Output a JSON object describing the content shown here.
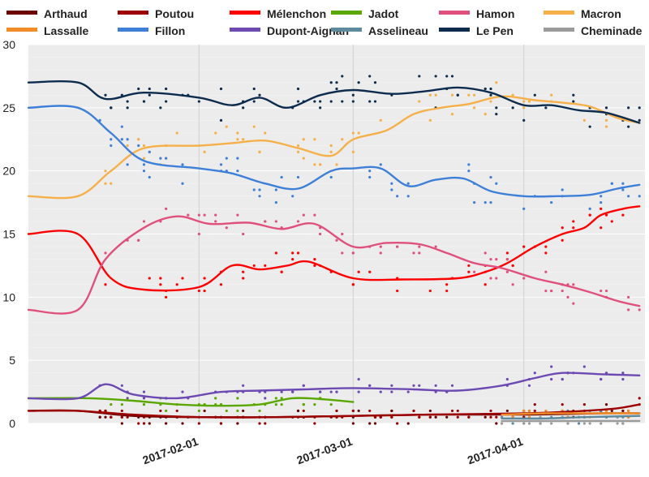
{
  "chart_data": {
    "type": "line",
    "title": "",
    "xlabel": "",
    "ylabel": "",
    "x_ticks": [
      "2017-02-01",
      "2017-03-01",
      "2017-04-01"
    ],
    "x_range": [
      "2017-01-01",
      "2017-04-23"
    ],
    "ylim": [
      0,
      30
    ],
    "y_ticks": [
      0,
      5,
      10,
      15,
      20,
      25,
      30
    ],
    "grid": true,
    "legend_position": "top",
    "series": [
      {
        "name": "Arthaud",
        "color": "#6b0000",
        "points": [
          [
            "2017-01-01",
            1.0
          ],
          [
            "2017-01-10",
            1.0
          ],
          [
            "2017-01-20",
            0.6
          ],
          [
            "2017-02-01",
            0.5
          ],
          [
            "2017-02-15",
            0.5
          ],
          [
            "2017-03-01",
            0.6
          ],
          [
            "2017-03-15",
            0.7
          ],
          [
            "2017-04-01",
            0.7
          ],
          [
            "2017-04-15",
            0.8
          ],
          [
            "2017-04-22",
            0.8
          ]
        ]
      },
      {
        "name": "Poutou",
        "color": "#9c0000",
        "points": [
          [
            "2017-01-01",
            1.0
          ],
          [
            "2017-01-10",
            1.0
          ],
          [
            "2017-01-20",
            0.7
          ],
          [
            "2017-02-01",
            0.5
          ],
          [
            "2017-02-15",
            0.5
          ],
          [
            "2017-03-01",
            0.6
          ],
          [
            "2017-03-15",
            0.7
          ],
          [
            "2017-04-01",
            0.8
          ],
          [
            "2017-04-12",
            1.0
          ],
          [
            "2017-04-18",
            1.2
          ],
          [
            "2017-04-22",
            1.5
          ]
        ]
      },
      {
        "name": "Mélenchon",
        "color": "#ff0000",
        "points": [
          [
            "2017-01-01",
            15.0
          ],
          [
            "2017-01-10",
            15.0
          ],
          [
            "2017-01-16",
            11.5
          ],
          [
            "2017-01-22",
            10.6
          ],
          [
            "2017-02-01",
            10.8
          ],
          [
            "2017-02-07",
            12.5
          ],
          [
            "2017-02-12",
            12.2
          ],
          [
            "2017-02-17",
            12.5
          ],
          [
            "2017-02-21",
            12.8
          ],
          [
            "2017-03-01",
            11.5
          ],
          [
            "2017-03-10",
            11.4
          ],
          [
            "2017-03-20",
            11.5
          ],
          [
            "2017-03-25",
            12.0
          ],
          [
            "2017-03-29",
            12.7
          ],
          [
            "2017-04-03",
            14.0
          ],
          [
            "2017-04-08",
            15.0
          ],
          [
            "2017-04-12",
            15.5
          ],
          [
            "2017-04-15",
            16.5
          ],
          [
            "2017-04-19",
            17.0
          ],
          [
            "2017-04-22",
            17.2
          ]
        ]
      },
      {
        "name": "Jadot",
        "color": "#5aa700",
        "points": [
          [
            "2017-01-01",
            2.0
          ],
          [
            "2017-01-12",
            2.0
          ],
          [
            "2017-01-20",
            1.8
          ],
          [
            "2017-01-28",
            1.5
          ],
          [
            "2017-02-05",
            1.4
          ],
          [
            "2017-02-12",
            1.5
          ],
          [
            "2017-02-18",
            2.0
          ],
          [
            "2017-02-24",
            1.9
          ],
          [
            "2017-03-01",
            1.7
          ]
        ]
      },
      {
        "name": "Hamon",
        "color": "#e0507d",
        "points": [
          [
            "2017-01-01",
            9.0
          ],
          [
            "2017-01-10",
            9.0
          ],
          [
            "2017-01-15",
            13.0
          ],
          [
            "2017-01-22",
            15.5
          ],
          [
            "2017-01-28",
            16.4
          ],
          [
            "2017-02-03",
            15.8
          ],
          [
            "2017-02-10",
            15.9
          ],
          [
            "2017-02-16",
            15.4
          ],
          [
            "2017-02-22",
            15.8
          ],
          [
            "2017-03-01",
            14.0
          ],
          [
            "2017-03-07",
            14.3
          ],
          [
            "2017-03-13",
            14.2
          ],
          [
            "2017-03-18",
            13.5
          ],
          [
            "2017-03-23",
            12.7
          ],
          [
            "2017-03-28",
            12.3
          ],
          [
            "2017-04-03",
            11.5
          ],
          [
            "2017-04-08",
            11.0
          ],
          [
            "2017-04-13",
            10.4
          ],
          [
            "2017-04-18",
            9.7
          ],
          [
            "2017-04-22",
            9.3
          ]
        ]
      },
      {
        "name": "Macron",
        "color": "#f5b04a",
        "points": [
          [
            "2017-01-01",
            18.0
          ],
          [
            "2017-01-10",
            18.0
          ],
          [
            "2017-01-16",
            20.0
          ],
          [
            "2017-01-22",
            21.8
          ],
          [
            "2017-02-01",
            22.0
          ],
          [
            "2017-02-07",
            22.2
          ],
          [
            "2017-02-13",
            22.4
          ],
          [
            "2017-02-19",
            21.8
          ],
          [
            "2017-02-25",
            21.2
          ],
          [
            "2017-03-01",
            22.5
          ],
          [
            "2017-03-07",
            23.2
          ],
          [
            "2017-03-12",
            24.5
          ],
          [
            "2017-03-17",
            25.0
          ],
          [
            "2017-03-22",
            25.3
          ],
          [
            "2017-03-28",
            25.9
          ],
          [
            "2017-04-03",
            25.6
          ],
          [
            "2017-04-08",
            25.4
          ],
          [
            "2017-04-13",
            25.1
          ],
          [
            "2017-04-18",
            24.2
          ],
          [
            "2017-04-22",
            23.8
          ]
        ]
      },
      {
        "name": "Lassalle",
        "color": "#f28c28",
        "points": [
          [
            "2017-03-28",
            0.7
          ],
          [
            "2017-04-05",
            0.8
          ],
          [
            "2017-04-12",
            0.8
          ],
          [
            "2017-04-22",
            0.8
          ]
        ]
      },
      {
        "name": "Fillon",
        "color": "#3e7fd8",
        "points": [
          [
            "2017-01-01",
            25.0
          ],
          [
            "2017-01-10",
            25.0
          ],
          [
            "2017-01-16",
            23.0
          ],
          [
            "2017-01-22",
            20.8
          ],
          [
            "2017-02-01",
            20.2
          ],
          [
            "2017-02-07",
            19.8
          ],
          [
            "2017-02-13",
            19.0
          ],
          [
            "2017-02-19",
            18.6
          ],
          [
            "2017-02-25",
            20.0
          ],
          [
            "2017-03-01",
            20.2
          ],
          [
            "2017-03-06",
            20.2
          ],
          [
            "2017-03-11",
            18.8
          ],
          [
            "2017-03-16",
            19.3
          ],
          [
            "2017-03-21",
            19.4
          ],
          [
            "2017-03-26",
            18.4
          ],
          [
            "2017-04-01",
            18.0
          ],
          [
            "2017-04-07",
            18.0
          ],
          [
            "2017-04-13",
            18.1
          ],
          [
            "2017-04-18",
            18.6
          ],
          [
            "2017-04-22",
            18.9
          ]
        ]
      },
      {
        "name": "Dupont-Aignan",
        "color": "#6c4ab2",
        "points": [
          [
            "2017-01-01",
            2.0
          ],
          [
            "2017-01-10",
            2.0
          ],
          [
            "2017-01-15",
            3.1
          ],
          [
            "2017-01-20",
            2.3
          ],
          [
            "2017-01-28",
            2.0
          ],
          [
            "2017-02-05",
            2.5
          ],
          [
            "2017-02-12",
            2.6
          ],
          [
            "2017-02-20",
            2.7
          ],
          [
            "2017-03-01",
            2.8
          ],
          [
            "2017-03-12",
            2.7
          ],
          [
            "2017-03-20",
            2.6
          ],
          [
            "2017-03-28",
            3.0
          ],
          [
            "2017-04-03",
            3.6
          ],
          [
            "2017-04-08",
            4.0
          ],
          [
            "2017-04-15",
            3.9
          ],
          [
            "2017-04-22",
            3.8
          ]
        ]
      },
      {
        "name": "Asselineau",
        "color": "#5e8a9e",
        "points": [
          [
            "2017-03-28",
            0.4
          ],
          [
            "2017-04-05",
            0.4
          ],
          [
            "2017-04-12",
            0.5
          ],
          [
            "2017-04-22",
            0.6
          ]
        ]
      },
      {
        "name": "Le Pen",
        "color": "#0d2c4d",
        "points": [
          [
            "2017-01-01",
            27.0
          ],
          [
            "2017-01-10",
            27.0
          ],
          [
            "2017-01-15",
            25.7
          ],
          [
            "2017-01-22",
            26.2
          ],
          [
            "2017-02-01",
            25.8
          ],
          [
            "2017-02-07",
            25.2
          ],
          [
            "2017-02-12",
            25.8
          ],
          [
            "2017-02-17",
            25.0
          ],
          [
            "2017-02-23",
            26.0
          ],
          [
            "2017-03-01",
            26.4
          ],
          [
            "2017-03-08",
            26.1
          ],
          [
            "2017-03-14",
            26.3
          ],
          [
            "2017-03-20",
            26.6
          ],
          [
            "2017-03-26",
            26.2
          ],
          [
            "2017-04-01",
            25.2
          ],
          [
            "2017-04-06",
            25.2
          ],
          [
            "2017-04-11",
            24.8
          ],
          [
            "2017-04-16",
            24.6
          ],
          [
            "2017-04-22",
            23.8
          ]
        ]
      },
      {
        "name": "Cheminade",
        "color": "#9b9b9b",
        "points": [
          [
            "2017-03-28",
            0.2
          ],
          [
            "2017-04-05",
            0.2
          ],
          [
            "2017-04-12",
            0.2
          ],
          [
            "2017-04-22",
            0.2
          ]
        ]
      }
    ]
  }
}
